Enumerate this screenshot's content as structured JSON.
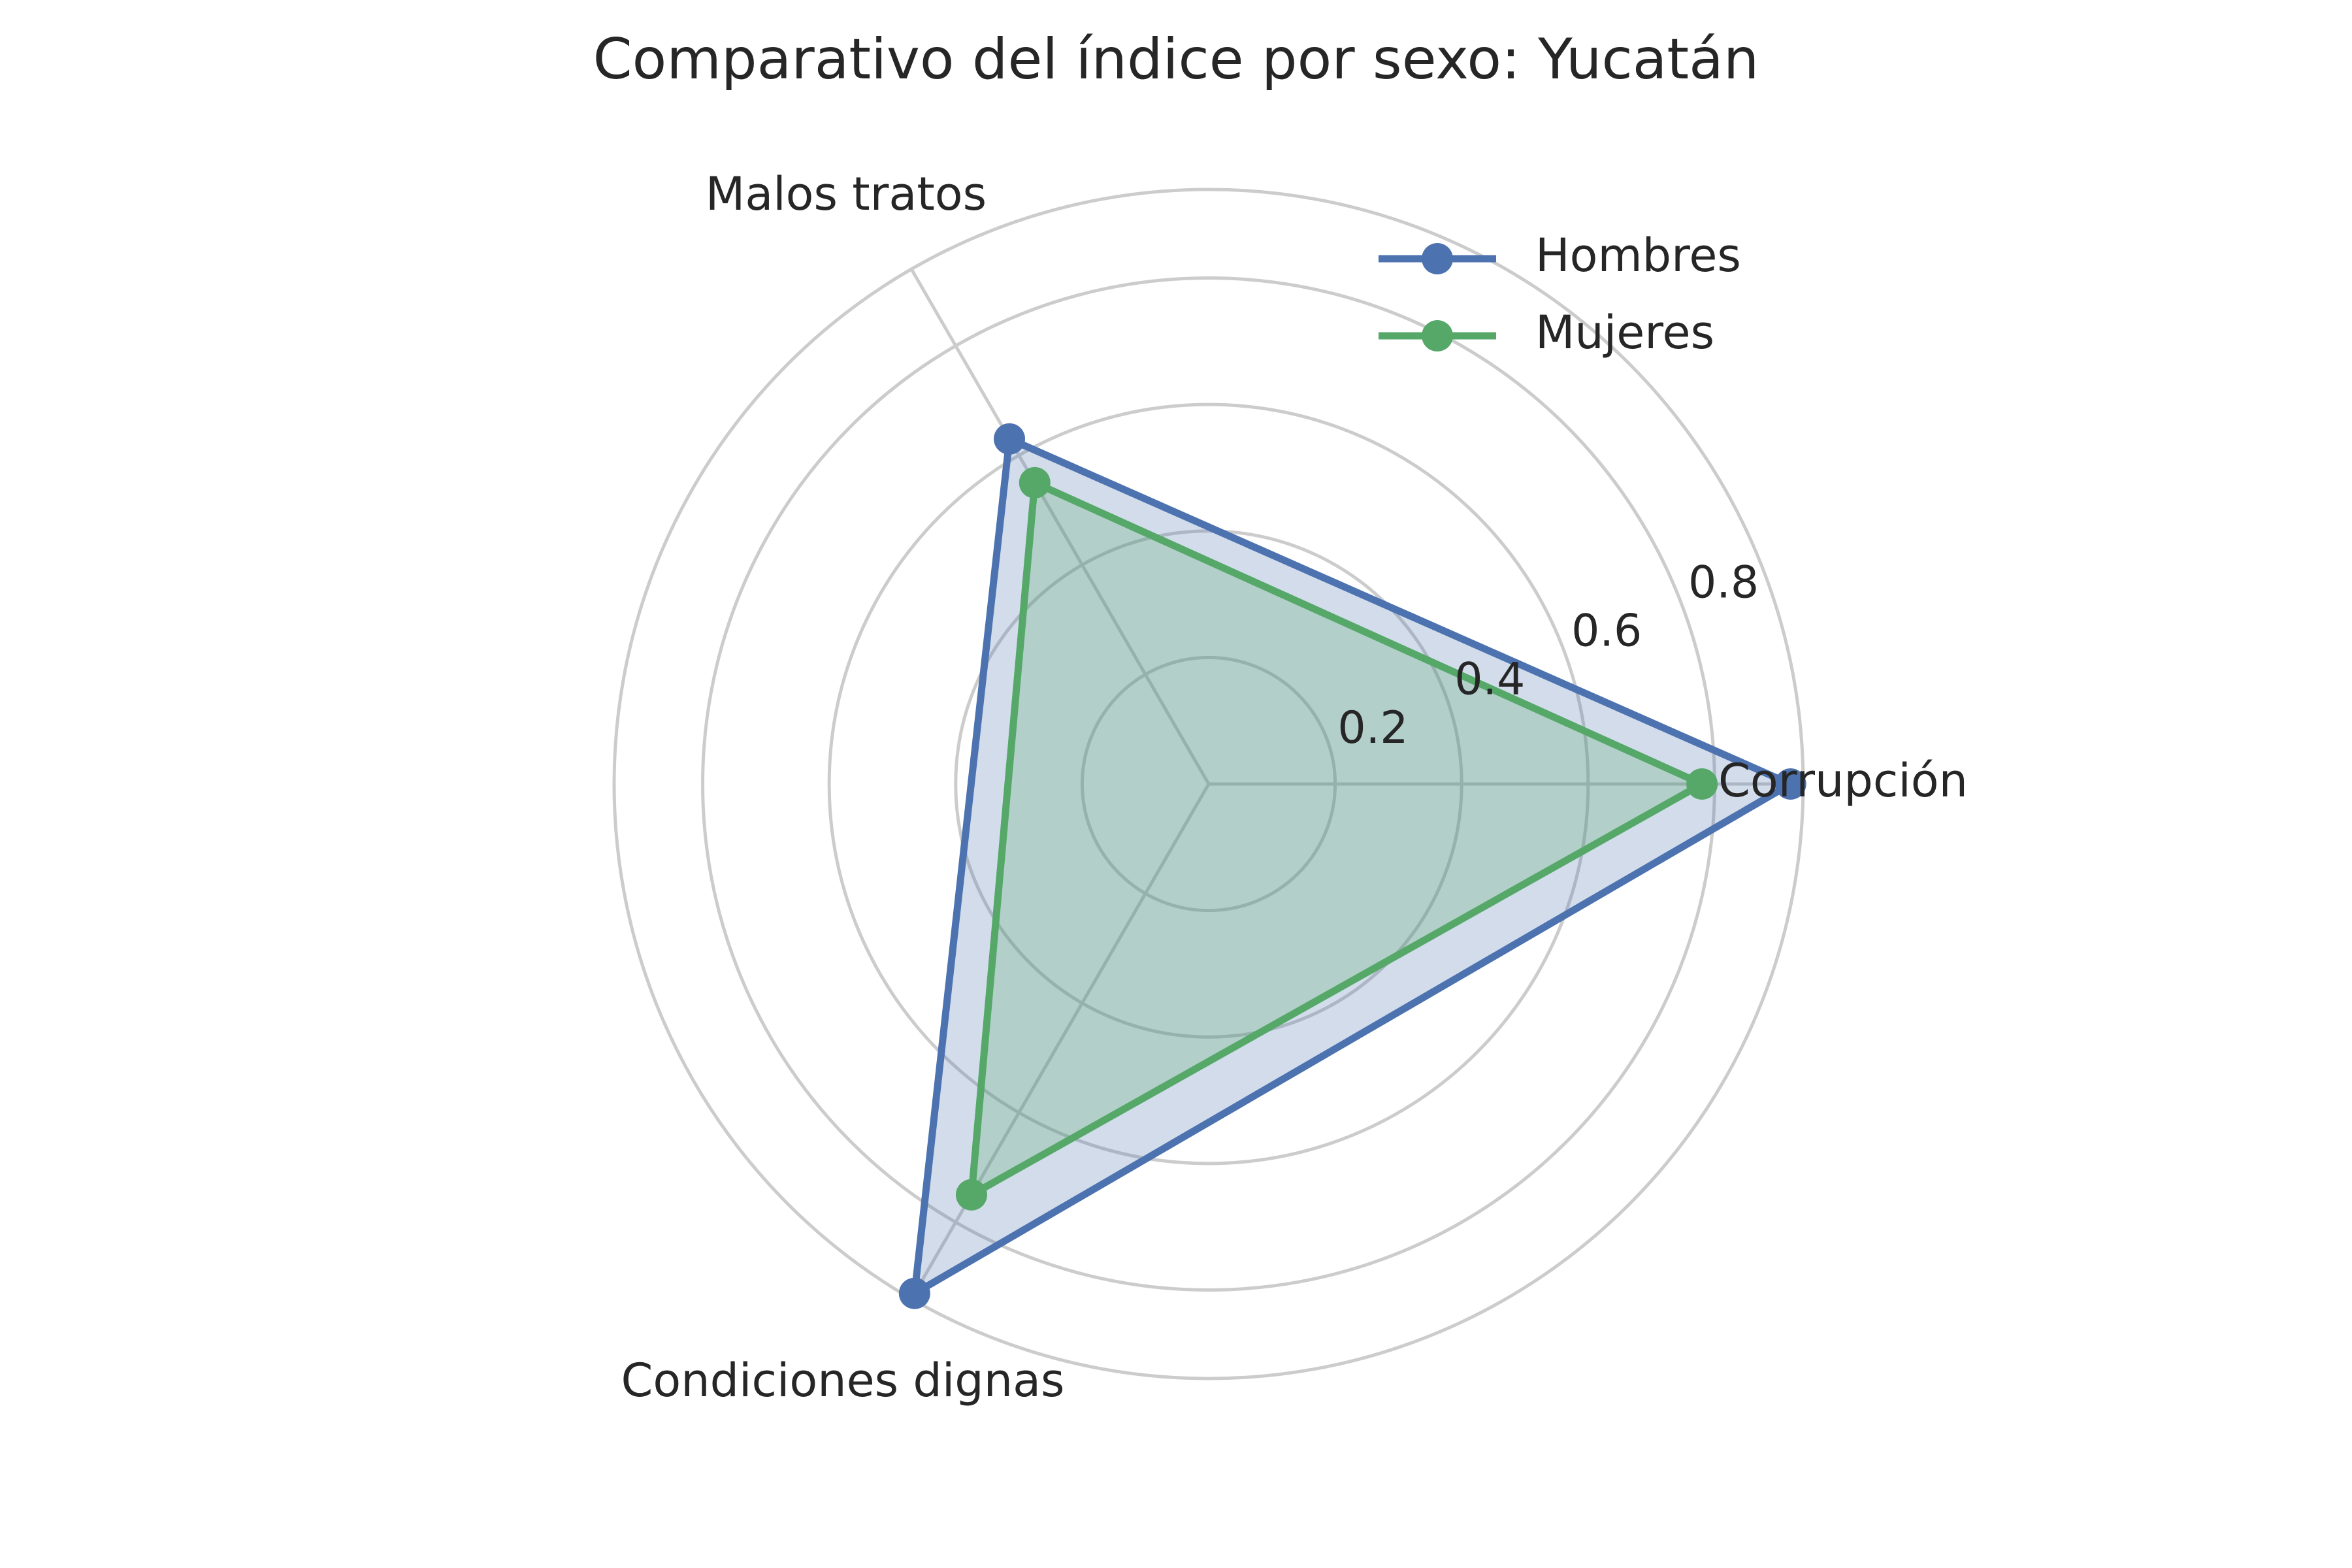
{
  "chart_data": {
    "type": "radar",
    "title": "Comparativo del índice por sexo: Yucatán",
    "categories": [
      "Corrupción",
      "Malos tratos",
      "Condiciones dignas"
    ],
    "series": [
      {
        "name": "Hombres",
        "values": [
          0.92,
          0.63,
          0.93
        ],
        "color": "#4C72B0",
        "fill": "#4C72B0"
      },
      {
        "name": "Mujeres",
        "values": [
          0.78,
          0.55,
          0.75
        ],
        "color": "#55A868",
        "fill": "#55A868"
      }
    ],
    "r_ticks": [
      0.2,
      0.4,
      0.6,
      0.8
    ],
    "r_tick_labels": [
      "0.2",
      "0.4",
      "0.6",
      "0.8"
    ],
    "r_range": [
      0,
      0.94
    ],
    "grid": true,
    "legend_position": "upper-right",
    "colors": {
      "grid": "#CCCCCC",
      "text": "#262626"
    }
  }
}
